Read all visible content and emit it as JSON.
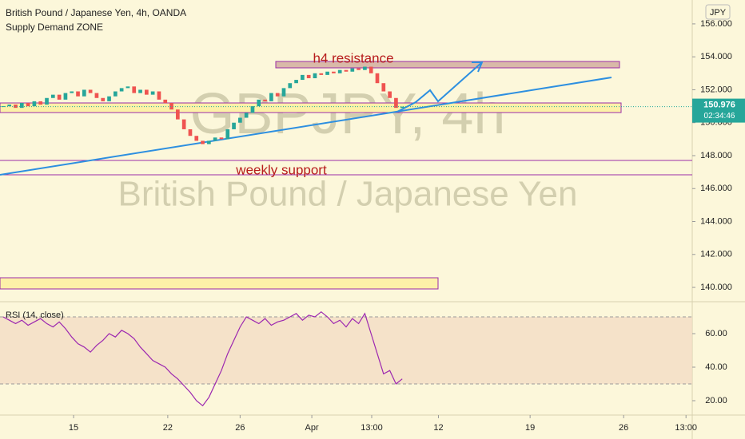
{
  "chart_data": [
    {
      "type": "candlestick",
      "title": "British Pound / Japanese Yen, 4h, OANDA",
      "subtitle": "Supply Demand ZONE",
      "watermark": "GBPJPY, 4h",
      "watermark_subtitle": "British Pound / Japanese Yen",
      "annotations": [
        "h4 resistance",
        "weekly support"
      ],
      "currency": "JPY",
      "x": [
        0,
        1,
        2,
        3,
        4,
        5,
        6,
        7,
        8,
        9,
        10,
        11,
        12,
        13,
        14,
        15,
        16,
        17,
        18,
        19,
        20,
        21,
        22,
        23,
        24,
        25,
        26,
        27,
        28,
        29,
        30,
        31,
        32,
        33,
        34,
        35,
        36,
        37,
        38,
        39,
        40,
        41,
        42,
        43,
        44,
        45,
        46,
        47,
        48,
        49,
        50,
        51,
        52,
        53,
        54,
        55,
        56,
        57,
        58,
        59,
        60,
        61,
        62,
        63,
        64
      ],
      "values": [
        151.0,
        151.1,
        150.9,
        151.2,
        151.0,
        151.3,
        151.1,
        151.5,
        151.7,
        151.4,
        151.8,
        151.9,
        151.6,
        152.0,
        151.8,
        151.5,
        151.3,
        151.6,
        151.9,
        152.1,
        152.2,
        151.8,
        152.0,
        151.7,
        151.9,
        151.4,
        151.2,
        150.8,
        150.2,
        149.6,
        149.2,
        148.9,
        148.7,
        148.9,
        149.1,
        149.0,
        149.6,
        150.0,
        150.3,
        150.6,
        151.0,
        151.4,
        151.3,
        151.8,
        151.6,
        152.1,
        152.4,
        152.6,
        152.9,
        152.7,
        153.0,
        152.9,
        153.1,
        153.0,
        153.2,
        153.1,
        153.3,
        153.2,
        153.4,
        153.0,
        152.4,
        151.9,
        151.5,
        150.9,
        150.976
      ],
      "color_up": "#26a69a",
      "color_down": "#ef5350",
      "xlim": [
        -0.5,
        110.5
      ],
      "xticks": [
        {
          "value": 11.3,
          "label": "15"
        },
        {
          "value": 26.4,
          "label": "22"
        },
        {
          "value": 38,
          "label": "26"
        },
        {
          "value": 49.5,
          "label": "Apr"
        },
        {
          "value": 59.1,
          "label": "13:00"
        },
        {
          "value": 69.8,
          "label": "12"
        },
        {
          "value": 84.5,
          "label": "19"
        },
        {
          "value": 99.5,
          "label": "26"
        },
        {
          "value": 109.5,
          "label": "13:00"
        }
      ],
      "ylim": [
        139.13,
        157.45
      ],
      "yticks": [
        {
          "value": 140,
          "label": "140.000"
        },
        {
          "value": 142,
          "label": "142.000"
        },
        {
          "value": 144,
          "label": "144.000"
        },
        {
          "value": 146,
          "label": "146.000"
        },
        {
          "value": 148,
          "label": "148.000"
        },
        {
          "value": 150,
          "label": "150.000"
        },
        {
          "value": 152,
          "label": "152.000"
        },
        {
          "value": 154,
          "label": "154.000"
        },
        {
          "value": 156,
          "label": "156.000"
        }
      ],
      "last_price": 150.976,
      "countdown": "02:34:46",
      "grid": false
    },
    {
      "type": "line",
      "title": "RSI (14, close)",
      "x": [
        0,
        1,
        2,
        3,
        4,
        5,
        6,
        7,
        8,
        9,
        10,
        11,
        12,
        13,
        14,
        15,
        16,
        17,
        18,
        19,
        20,
        21,
        22,
        23,
        24,
        25,
        26,
        27,
        28,
        29,
        30,
        31,
        32,
        33,
        34,
        35,
        36,
        37,
        38,
        39,
        40,
        41,
        42,
        43,
        44,
        45,
        46,
        47,
        48,
        49,
        50,
        51,
        52,
        53,
        54,
        55,
        56,
        57,
        58,
        59,
        60,
        61,
        62,
        63,
        64
      ],
      "values": [
        70,
        68,
        66,
        68,
        65,
        67,
        69,
        66,
        64,
        67,
        63,
        58,
        54,
        52,
        49,
        53,
        56,
        60,
        58,
        62,
        60,
        57,
        52,
        48,
        44,
        42,
        40,
        36,
        33,
        29,
        25,
        20,
        17,
        22,
        30,
        38,
        48,
        56,
        64,
        70,
        68,
        66,
        69,
        65,
        67,
        68,
        70,
        72,
        68,
        71,
        70,
        73,
        70,
        66,
        68,
        64,
        69,
        66,
        72,
        60,
        48,
        36,
        38,
        30,
        33
      ],
      "color": "#9c27b0",
      "band": [
        30,
        70
      ],
      "xlim": [
        -0.5,
        110.5
      ],
      "ylim": [
        11.43,
        78.1
      ],
      "yticks": [
        {
          "value": 20,
          "label": "20.00"
        },
        {
          "value": 40,
          "label": "40.00"
        },
        {
          "value": 60,
          "label": "60.00"
        }
      ],
      "grid": false
    }
  ]
}
